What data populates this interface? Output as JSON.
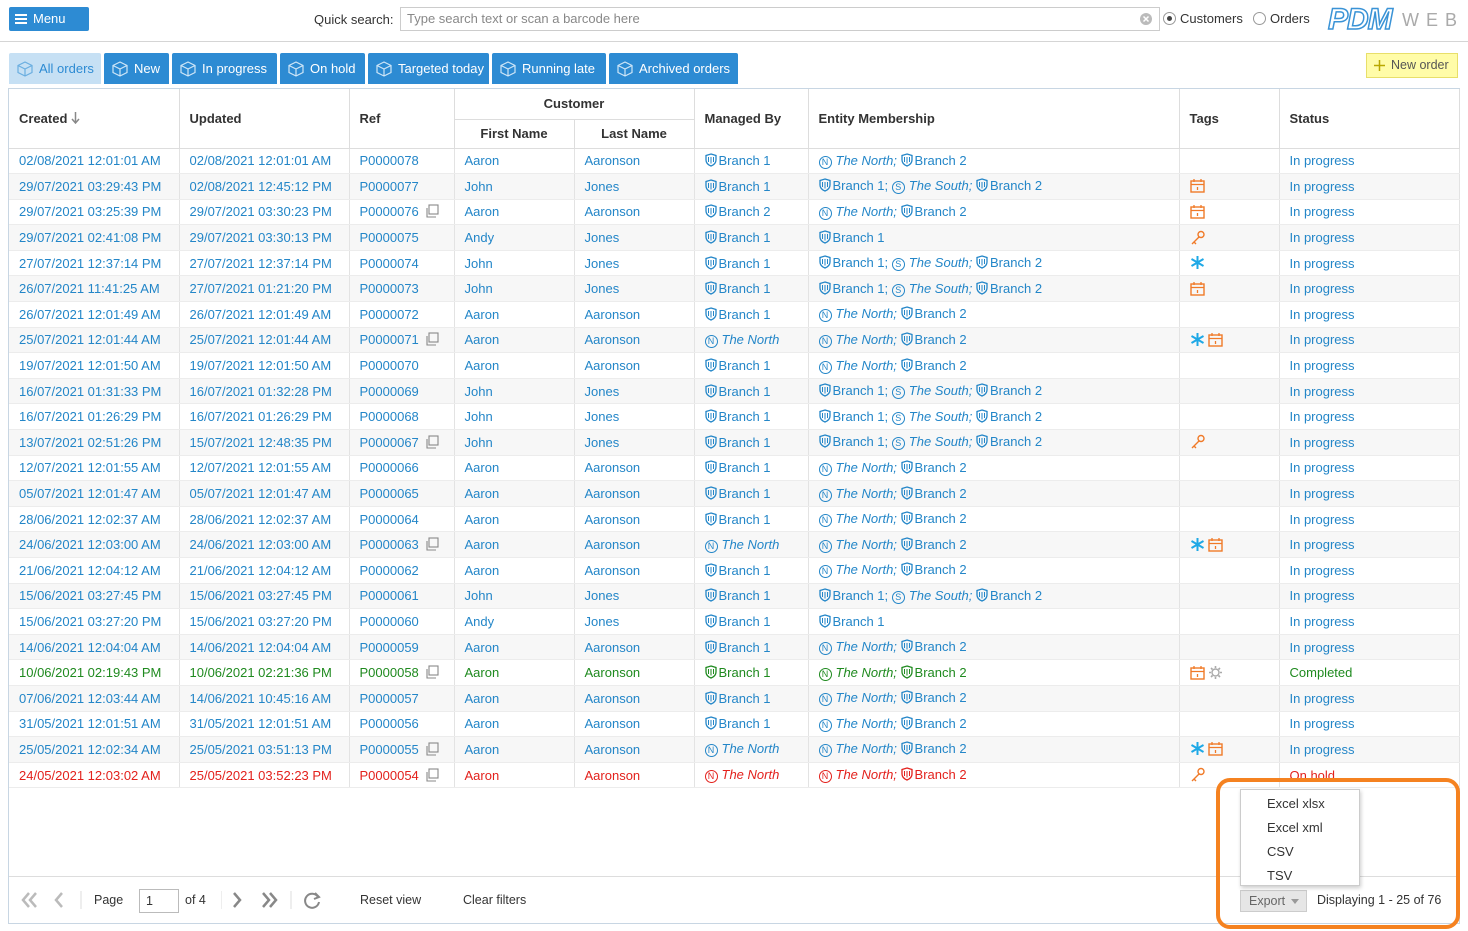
{
  "header": {
    "menu": "Menu",
    "search_label": "Quick search:",
    "search_placeholder": "Type search text or scan a barcode here",
    "radios": [
      "Customers",
      "Orders"
    ],
    "logo_main": "PDM",
    "logo_sub": "WEB"
  },
  "tabs": [
    "All orders",
    "New",
    "In progress",
    "On hold",
    "Targeted today",
    "Running late",
    "Archived orders"
  ],
  "new_order": "New order",
  "table": {
    "columns": [
      "Created",
      "Updated",
      "Ref",
      "Customer",
      "First Name",
      "Last Name",
      "Managed By",
      "Entity Membership",
      "Tags",
      "Status"
    ],
    "rows": [
      {
        "color": "#2386c8",
        "created": "02/08/2021 12:01:01 AM",
        "updated": "02/08/2021 12:01:01 AM",
        "ref": "P0000078",
        "copy": false,
        "first": "Aaron",
        "last": "Aaronson",
        "managed": {
          "text": "Branch 1"
        },
        "entity": [
          {
            "badge": "N",
            "text": "The North;"
          },
          {
            "text": "Branch 2"
          }
        ],
        "tags": [],
        "status": "In progress"
      },
      {
        "color": "#2386c8",
        "created": "29/07/2021 03:29:43 PM",
        "updated": "02/08/2021 12:45:12 PM",
        "ref": "P0000077",
        "copy": false,
        "first": "John",
        "last": "Jones",
        "managed": {
          "text": "Branch 1"
        },
        "entity": [
          {
            "text": "Branch 1;"
          },
          {
            "badge": "S",
            "text": "The South;"
          },
          {
            "text": "Branch 2"
          }
        ],
        "tags": [
          "calendar"
        ],
        "status": "In progress"
      },
      {
        "color": "#2386c8",
        "created": "29/07/2021 03:25:39 PM",
        "updated": "29/07/2021 03:30:23 PM",
        "ref": "P0000076",
        "copy": true,
        "first": "Aaron",
        "last": "Aaronson",
        "managed": {
          "text": "Branch 2"
        },
        "entity": [
          {
            "badge": "N",
            "text": "The North;"
          },
          {
            "text": "Branch 2"
          }
        ],
        "tags": [
          "calendar"
        ],
        "status": "In progress"
      },
      {
        "color": "#2386c8",
        "created": "29/07/2021 02:41:08 PM",
        "updated": "29/07/2021 03:30:13 PM",
        "ref": "P0000075",
        "copy": false,
        "first": "Andy",
        "last": "Jones",
        "managed": {
          "text": "Branch 1"
        },
        "entity": [
          {
            "text": "Branch 1"
          }
        ],
        "tags": [
          "key"
        ],
        "status": "In progress"
      },
      {
        "color": "#2386c8",
        "created": "27/07/2021 12:37:14 PM",
        "updated": "27/07/2021 12:37:14 PM",
        "ref": "P0000074",
        "copy": false,
        "first": "John",
        "last": "Jones",
        "managed": {
          "text": "Branch 1"
        },
        "entity": [
          {
            "text": "Branch 1;"
          },
          {
            "badge": "S",
            "text": "The South;"
          },
          {
            "text": "Branch 2"
          }
        ],
        "tags": [
          "snow"
        ],
        "status": "In progress"
      },
      {
        "color": "#2386c8",
        "created": "26/07/2021 11:41:25 AM",
        "updated": "27/07/2021 01:21:20 PM",
        "ref": "P0000073",
        "copy": false,
        "first": "John",
        "last": "Jones",
        "managed": {
          "text": "Branch 1"
        },
        "entity": [
          {
            "text": "Branch 1;"
          },
          {
            "badge": "S",
            "text": "The South;"
          },
          {
            "text": "Branch 2"
          }
        ],
        "tags": [
          "calendar"
        ],
        "status": "In progress"
      },
      {
        "color": "#2386c8",
        "created": "26/07/2021 12:01:49 AM",
        "updated": "26/07/2021 12:01:49 AM",
        "ref": "P0000072",
        "copy": false,
        "first": "Aaron",
        "last": "Aaronson",
        "managed": {
          "text": "Branch 1"
        },
        "entity": [
          {
            "badge": "N",
            "text": "The North;"
          },
          {
            "text": "Branch 2"
          }
        ],
        "tags": [],
        "status": "In progress"
      },
      {
        "color": "#2386c8",
        "created": "25/07/2021 12:01:44 AM",
        "updated": "25/07/2021 12:01:44 AM",
        "ref": "P0000071",
        "copy": true,
        "first": "Aaron",
        "last": "Aaronson",
        "managed": {
          "badge": "N",
          "text": "The North"
        },
        "entity": [
          {
            "badge": "N",
            "text": "The North;"
          },
          {
            "text": "Branch 2"
          }
        ],
        "tags": [
          "snow",
          "calendar"
        ],
        "status": "In progress"
      },
      {
        "color": "#2386c8",
        "created": "19/07/2021 12:01:50 AM",
        "updated": "19/07/2021 12:01:50 AM",
        "ref": "P0000070",
        "copy": false,
        "first": "Aaron",
        "last": "Aaronson",
        "managed": {
          "text": "Branch 1"
        },
        "entity": [
          {
            "badge": "N",
            "text": "The North;"
          },
          {
            "text": "Branch 2"
          }
        ],
        "tags": [],
        "status": "In progress"
      },
      {
        "color": "#2386c8",
        "created": "16/07/2021 01:31:33 PM",
        "updated": "16/07/2021 01:32:28 PM",
        "ref": "P0000069",
        "copy": false,
        "first": "John",
        "last": "Jones",
        "managed": {
          "text": "Branch 1"
        },
        "entity": [
          {
            "text": "Branch 1;"
          },
          {
            "badge": "S",
            "text": "The South;"
          },
          {
            "text": "Branch 2"
          }
        ],
        "tags": [],
        "status": "In progress"
      },
      {
        "color": "#2386c8",
        "created": "16/07/2021 01:26:29 PM",
        "updated": "16/07/2021 01:26:29 PM",
        "ref": "P0000068",
        "copy": false,
        "first": "John",
        "last": "Jones",
        "managed": {
          "text": "Branch 1"
        },
        "entity": [
          {
            "text": "Branch 1;"
          },
          {
            "badge": "S",
            "text": "The South;"
          },
          {
            "text": "Branch 2"
          }
        ],
        "tags": [],
        "status": "In progress"
      },
      {
        "color": "#2386c8",
        "created": "13/07/2021 02:51:26 PM",
        "updated": "15/07/2021 12:48:35 PM",
        "ref": "P0000067",
        "copy": true,
        "first": "John",
        "last": "Jones",
        "managed": {
          "text": "Branch 1"
        },
        "entity": [
          {
            "text": "Branch 1;"
          },
          {
            "badge": "S",
            "text": "The South;"
          },
          {
            "text": "Branch 2"
          }
        ],
        "tags": [
          "key"
        ],
        "status": "In progress"
      },
      {
        "color": "#2386c8",
        "created": "12/07/2021 12:01:55 AM",
        "updated": "12/07/2021 12:01:55 AM",
        "ref": "P0000066",
        "copy": false,
        "first": "Aaron",
        "last": "Aaronson",
        "managed": {
          "text": "Branch 1"
        },
        "entity": [
          {
            "badge": "N",
            "text": "The North;"
          },
          {
            "text": "Branch 2"
          }
        ],
        "tags": [],
        "status": "In progress"
      },
      {
        "color": "#2386c8",
        "created": "05/07/2021 12:01:47 AM",
        "updated": "05/07/2021 12:01:47 AM",
        "ref": "P0000065",
        "copy": false,
        "first": "Aaron",
        "last": "Aaronson",
        "managed": {
          "text": "Branch 1"
        },
        "entity": [
          {
            "badge": "N",
            "text": "The North;"
          },
          {
            "text": "Branch 2"
          }
        ],
        "tags": [],
        "status": "In progress"
      },
      {
        "color": "#2386c8",
        "created": "28/06/2021 12:02:37 AM",
        "updated": "28/06/2021 12:02:37 AM",
        "ref": "P0000064",
        "copy": false,
        "first": "Aaron",
        "last": "Aaronson",
        "managed": {
          "text": "Branch 1"
        },
        "entity": [
          {
            "badge": "N",
            "text": "The North;"
          },
          {
            "text": "Branch 2"
          }
        ],
        "tags": [],
        "status": "In progress"
      },
      {
        "color": "#2386c8",
        "created": "24/06/2021 12:03:00 AM",
        "updated": "24/06/2021 12:03:00 AM",
        "ref": "P0000063",
        "copy": true,
        "first": "Aaron",
        "last": "Aaronson",
        "managed": {
          "badge": "N",
          "text": "The North"
        },
        "entity": [
          {
            "badge": "N",
            "text": "The North;"
          },
          {
            "text": "Branch 2"
          }
        ],
        "tags": [
          "snow",
          "calendar"
        ],
        "status": "In progress"
      },
      {
        "color": "#2386c8",
        "created": "21/06/2021 12:04:12 AM",
        "updated": "21/06/2021 12:04:12 AM",
        "ref": "P0000062",
        "copy": false,
        "first": "Aaron",
        "last": "Aaronson",
        "managed": {
          "text": "Branch 1"
        },
        "entity": [
          {
            "badge": "N",
            "text": "The North;"
          },
          {
            "text": "Branch 2"
          }
        ],
        "tags": [],
        "status": "In progress"
      },
      {
        "color": "#2386c8",
        "created": "15/06/2021 03:27:45 PM",
        "updated": "15/06/2021 03:27:45 PM",
        "ref": "P0000061",
        "copy": false,
        "first": "John",
        "last": "Jones",
        "managed": {
          "text": "Branch 1"
        },
        "entity": [
          {
            "text": "Branch 1;"
          },
          {
            "badge": "S",
            "text": "The South;"
          },
          {
            "text": "Branch 2"
          }
        ],
        "tags": [],
        "status": "In progress"
      },
      {
        "color": "#2386c8",
        "created": "15/06/2021 03:27:20 PM",
        "updated": "15/06/2021 03:27:20 PM",
        "ref": "P0000060",
        "copy": false,
        "first": "Andy",
        "last": "Jones",
        "managed": {
          "text": "Branch 1"
        },
        "entity": [
          {
            "text": "Branch 1"
          }
        ],
        "tags": [],
        "status": "In progress"
      },
      {
        "color": "#2386c8",
        "created": "14/06/2021 12:04:04 AM",
        "updated": "14/06/2021 12:04:04 AM",
        "ref": "P0000059",
        "copy": false,
        "first": "Aaron",
        "last": "Aaronson",
        "managed": {
          "text": "Branch 1"
        },
        "entity": [
          {
            "badge": "N",
            "text": "The North;"
          },
          {
            "text": "Branch 2"
          }
        ],
        "tags": [],
        "status": "In progress"
      },
      {
        "color": "#1f8a1f",
        "created": "10/06/2021 02:19:43 PM",
        "updated": "10/06/2021 02:21:36 PM",
        "ref": "P0000058",
        "copy": true,
        "first": "Aaron",
        "last": "Aaronson",
        "managed": {
          "text": "Branch 1"
        },
        "entity": [
          {
            "badge": "N",
            "text": "The North;"
          },
          {
            "text": "Branch 2"
          }
        ],
        "tags": [
          "calendar",
          "gear"
        ],
        "status": "Completed"
      },
      {
        "color": "#2386c8",
        "created": "07/06/2021 12:03:44 AM",
        "updated": "14/06/2021 10:45:16 AM",
        "ref": "P0000057",
        "copy": false,
        "first": "Aaron",
        "last": "Aaronson",
        "managed": {
          "text": "Branch 1"
        },
        "entity": [
          {
            "badge": "N",
            "text": "The North;"
          },
          {
            "text": "Branch 2"
          }
        ],
        "tags": [],
        "status": "In progress"
      },
      {
        "color": "#2386c8",
        "created": "31/05/2021 12:01:51 AM",
        "updated": "31/05/2021 12:01:51 AM",
        "ref": "P0000056",
        "copy": false,
        "first": "Aaron",
        "last": "Aaronson",
        "managed": {
          "text": "Branch 1"
        },
        "entity": [
          {
            "badge": "N",
            "text": "The North;"
          },
          {
            "text": "Branch 2"
          }
        ],
        "tags": [],
        "status": "In progress"
      },
      {
        "color": "#2386c8",
        "created": "25/05/2021 12:02:34 AM",
        "updated": "25/05/2021 03:51:13 PM",
        "ref": "P0000055",
        "copy": true,
        "first": "Aaron",
        "last": "Aaronson",
        "managed": {
          "badge": "N",
          "text": "The North"
        },
        "entity": [
          {
            "badge": "N",
            "text": "The North;"
          },
          {
            "text": "Branch 2"
          }
        ],
        "tags": [
          "snow",
          "calendar"
        ],
        "status": "In progress"
      },
      {
        "color": "#e3211c",
        "created": "24/05/2021 12:03:02 AM",
        "updated": "25/05/2021 03:52:23 PM",
        "ref": "P0000054",
        "copy": true,
        "first": "Aaron",
        "last": "Aaronson",
        "managed": {
          "badge": "N",
          "text": "The North"
        },
        "entity": [
          {
            "badge": "N",
            "text": "The North;"
          },
          {
            "text": "Branch 2"
          }
        ],
        "tags": [
          "key"
        ],
        "status": "On hold"
      }
    ]
  },
  "footer": {
    "page_label": "Page",
    "page_value": "1",
    "page_of": "of 4",
    "reset": "Reset view",
    "clear": "Clear filters",
    "export": "Export",
    "displaying": "Displaying 1 - 25 of 76"
  },
  "export_menu": [
    "Excel xlsx",
    "Excel xml",
    "CSV",
    "TSV"
  ]
}
